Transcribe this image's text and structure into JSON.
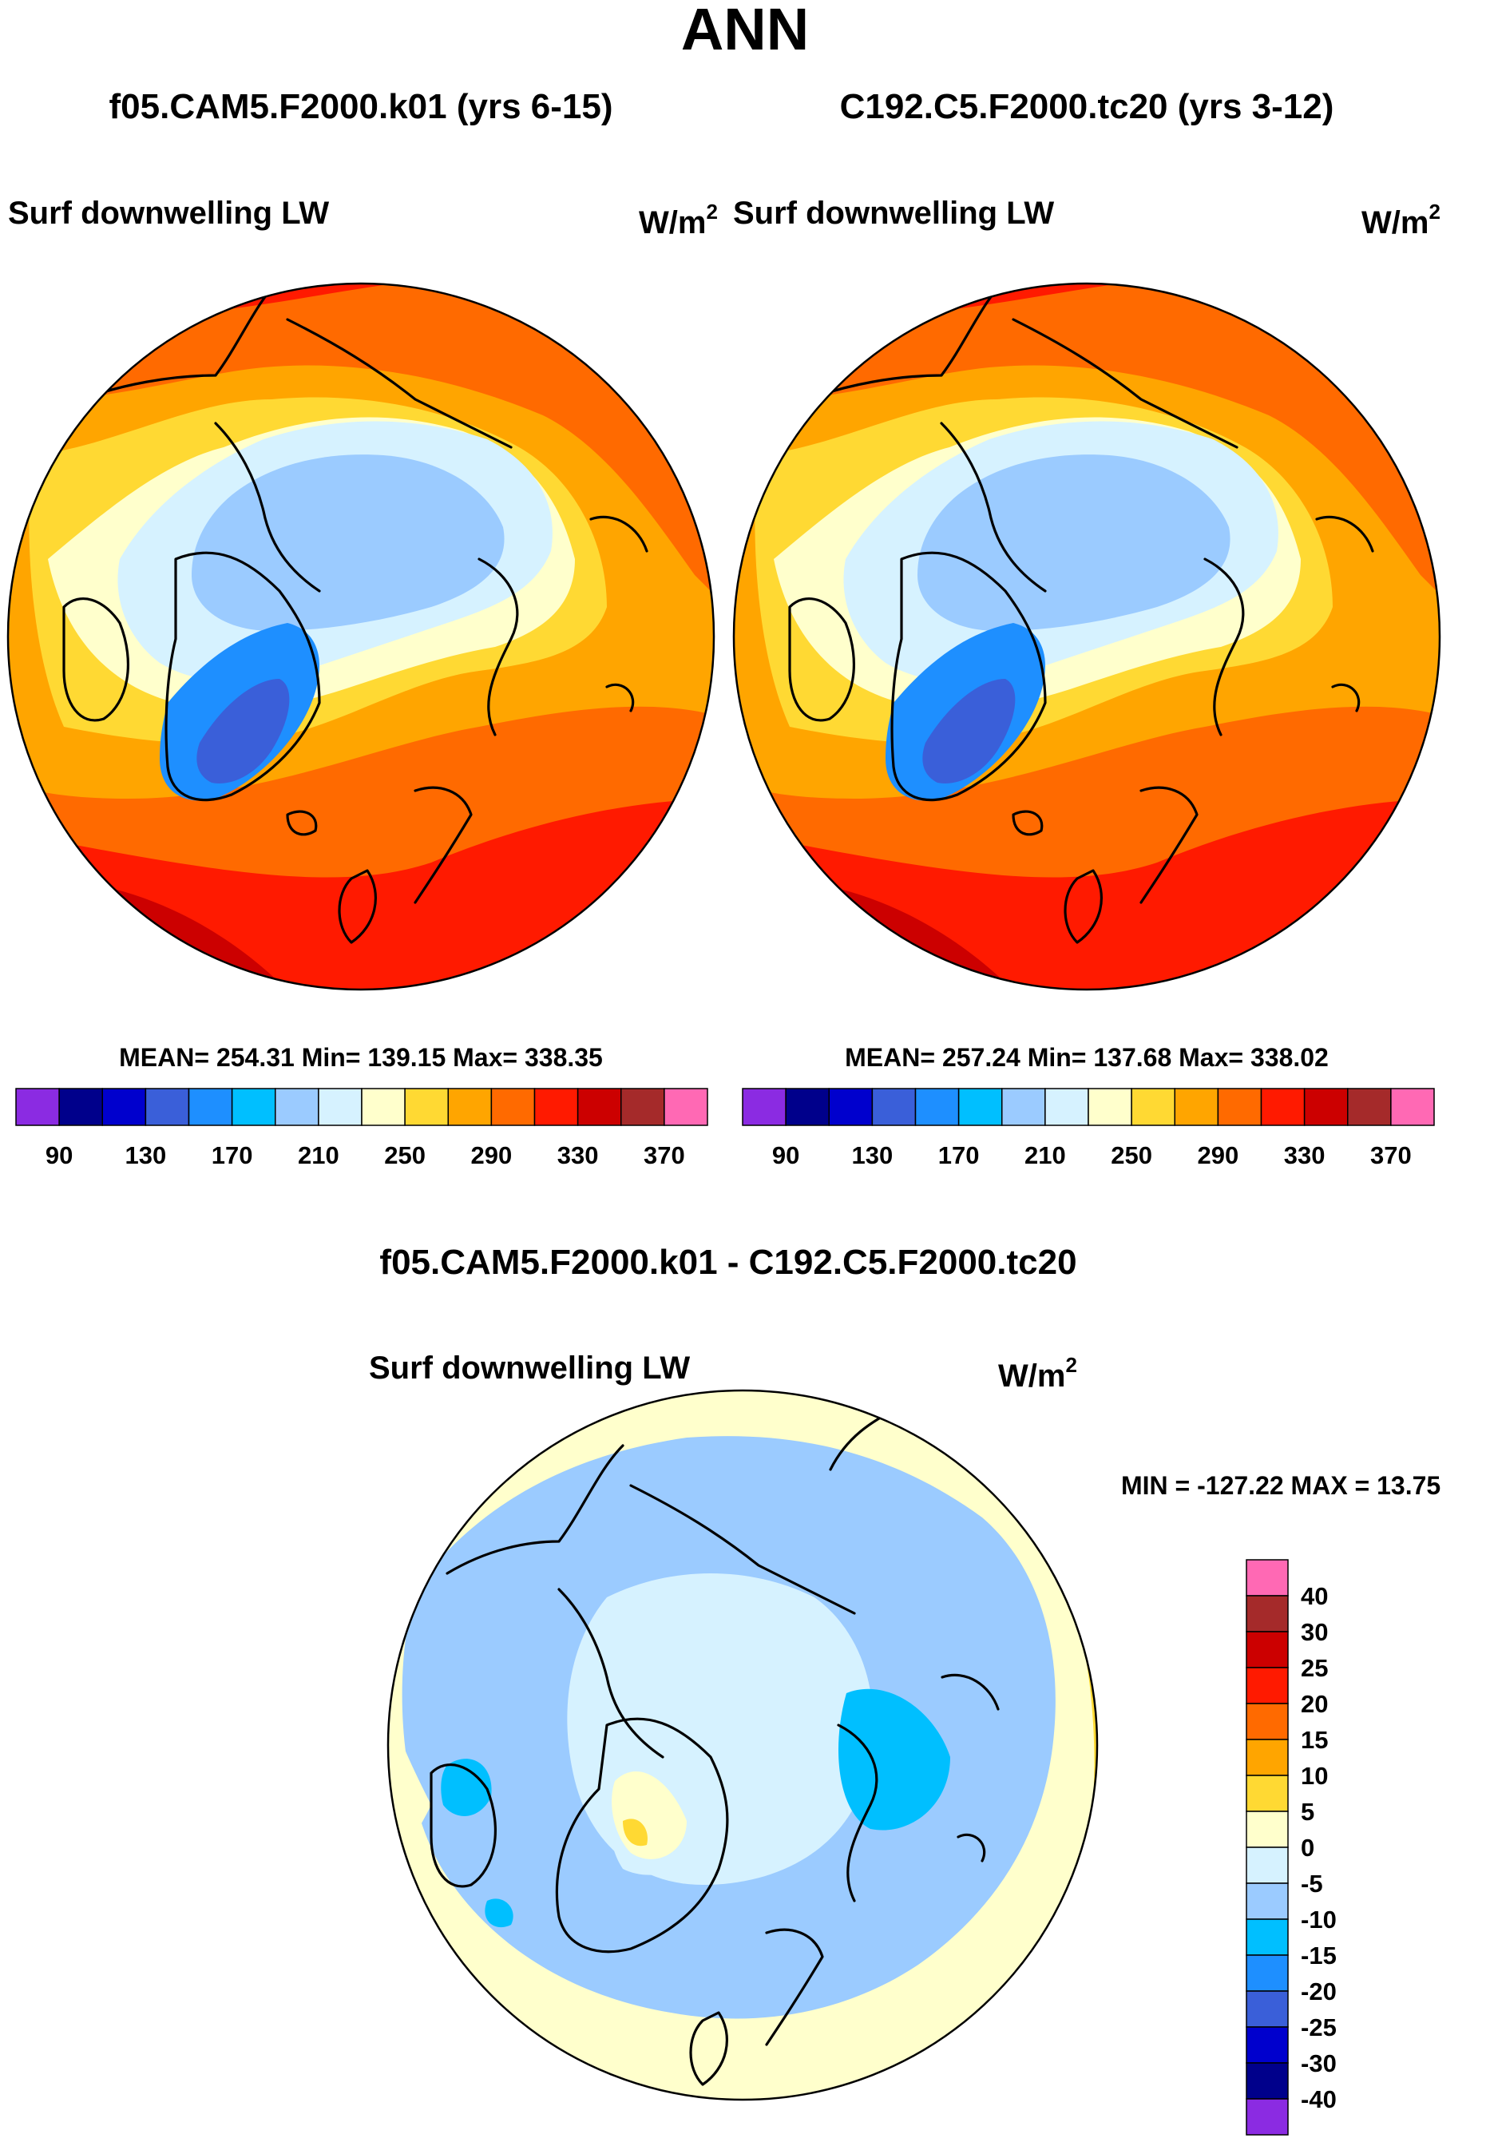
{
  "title": "ANN",
  "panels": [
    {
      "case_title": "f05.CAM5.F2000.k01 (yrs 6-15)",
      "variable": "Surf downwelling LW",
      "units_base": "W/m",
      "units_exp": "2",
      "stats": "MEAN= 254.31  Min= 139.15  Max= 338.35",
      "mean": 254.31,
      "min": 139.15,
      "max": 338.35
    },
    {
      "case_title": "C192.C5.F2000.tc20 (yrs 3-12)",
      "variable": "Surf downwelling LW",
      "units_base": "W/m",
      "units_exp": "2",
      "stats": "MEAN= 257.24  Min= 137.68  Max= 338.02",
      "mean": 257.24,
      "min": 137.68,
      "max": 338.02
    }
  ],
  "diff_panel": {
    "title": "f05.CAM5.F2000.k01 - C192.C5.F2000.tc20",
    "variable": "Surf downwelling LW",
    "units_base": "W/m",
    "units_exp": "2",
    "stats": "MIN = -127.22 MAX =  13.75",
    "min": -127.22,
    "max": 13.75
  },
  "abs_colorbar": {
    "colors": [
      "#8b2be2",
      "#00008b",
      "#0000cd",
      "#3a5fd9",
      "#1e8fff",
      "#00bfff",
      "#9bcbff",
      "#d6f2ff",
      "#ffffcc",
      "#ffd933",
      "#ffa500",
      "#ff6a00",
      "#ff1a00",
      "#cc0000",
      "#a52a2a",
      "#ff69b4"
    ],
    "tick_labels": [
      "90",
      "130",
      "170",
      "210",
      "250",
      "290",
      "330",
      "370"
    ]
  },
  "diff_colorbar": {
    "colors": [
      "#ff69b4",
      "#a52a2a",
      "#cc0000",
      "#ff1a00",
      "#ff6a00",
      "#ffa500",
      "#ffd933",
      "#ffffcc",
      "#d6f2ff",
      "#9bcbff",
      "#00bfff",
      "#1e8fff",
      "#3a5fd9",
      "#0000cd",
      "#00008b",
      "#8b2be2"
    ],
    "tick_labels": [
      "40",
      "30",
      "25",
      "20",
      "15",
      "10",
      "5",
      "0",
      "-5",
      "-10",
      "-15",
      "-20",
      "-25",
      "-30",
      "-40"
    ]
  }
}
